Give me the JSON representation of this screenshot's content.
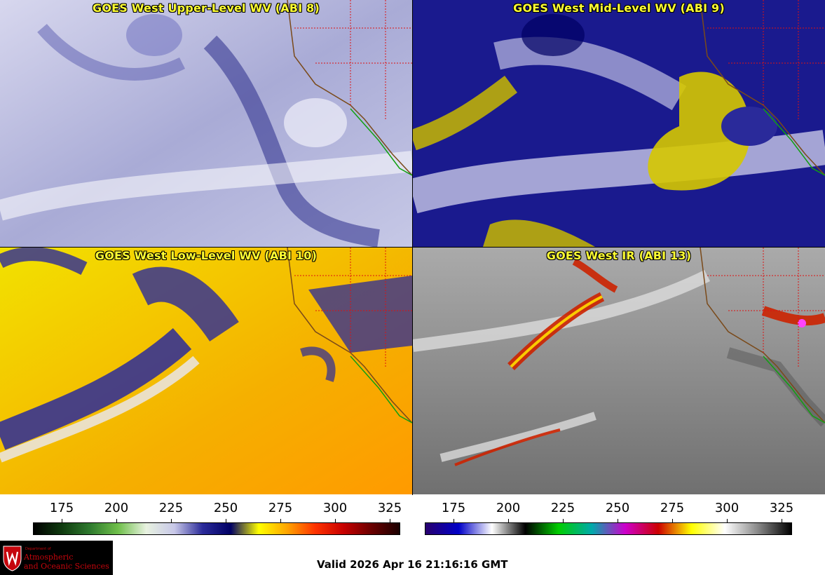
{
  "panels": [
    {
      "title": "GOES West Upper-Level WV (ABI 8)"
    },
    {
      "title": "GOES West Mid-Level WV (ABI 9)"
    },
    {
      "title": "GOES West Low-Level WV (ABI 10)"
    },
    {
      "title": "GOES West IR (ABI 13)"
    }
  ],
  "colorbar_wv": {
    "ticks": [
      "175",
      "200",
      "225",
      "250",
      "275",
      "300",
      "325"
    ],
    "stops": [
      "#000000",
      "#0f3a0f",
      "#2e7a2e",
      "#6fbf4a",
      "#e8f2e0",
      "#c8c8e8",
      "#2b2b9a",
      "#000064",
      "#ffff00",
      "#ffa500",
      "#ff3300",
      "#c80000",
      "#6a0000",
      "#1a0000"
    ]
  },
  "colorbar_ir": {
    "ticks": [
      "175",
      "200",
      "225",
      "250",
      "275",
      "300",
      "325"
    ],
    "stops": [
      "#28006e",
      "#0000c8",
      "#ffffff",
      "#000000",
      "#00cc00",
      "#00aaaa",
      "#cc00cc",
      "#cc0000",
      "#ffff00",
      "#ffffff",
      "#888888",
      "#000000"
    ]
  },
  "logo": {
    "dept": "Department of",
    "line1": "Atmospheric",
    "line2": "and Oceanic Sciences"
  },
  "valid_time": "Valid 2026 Apr 16 21:16:16 GMT"
}
